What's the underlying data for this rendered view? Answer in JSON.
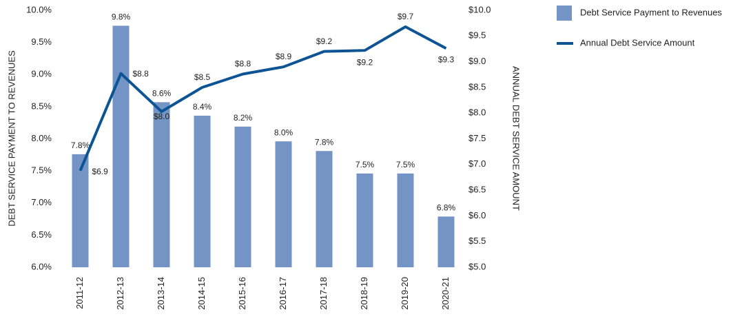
{
  "chart_data": {
    "type": "bar-line",
    "categories": [
      "2011-12",
      "2012-13",
      "2013-14",
      "2014-15",
      "2015-16",
      "2016-17",
      "2017-18",
      "2018-19",
      "2019-20",
      "2020-21"
    ],
    "series": [
      {
        "name": "Debt Service Payment to Revenues",
        "type": "bar",
        "color": "#7394c4",
        "axis": "y",
        "values": [
          7.76,
          9.76,
          8.57,
          8.36,
          8.19,
          7.96,
          7.81,
          7.46,
          7.46,
          6.79
        ],
        "value_labels": [
          "7.8%",
          "9.8%",
          "8.6%",
          "8.4%",
          "8.2%",
          "8.0%",
          "7.8%",
          "7.5%",
          "7.5%",
          "6.8%"
        ]
      },
      {
        "name": "Annual Debt Service Amount",
        "type": "line",
        "color": "#0d5494",
        "axis": "y2",
        "values": [
          6.88,
          8.77,
          8.03,
          8.5,
          8.76,
          8.9,
          9.2,
          9.22,
          9.68,
          9.26
        ],
        "value_labels": [
          "$6.9",
          "$8.8",
          "$8.0",
          "$8.5",
          "$8.8",
          "$8.9",
          "$9.2",
          "$9.2",
          "$9.7",
          "$9.3"
        ]
      }
    ],
    "ylabel": "DEBT SERVICE PAYMENT TO REVENUES",
    "y2label": "ANNUAL DEBT SERVICE AMOUNT",
    "ylim": [
      6.0,
      10.0
    ],
    "yticks": [
      {
        "value": 6.0,
        "label": "6.0%"
      },
      {
        "value": 6.5,
        "label": "6.5%"
      },
      {
        "value": 7.0,
        "label": "7.0%"
      },
      {
        "value": 7.5,
        "label": "7.5%"
      },
      {
        "value": 8.0,
        "label": "8.0%"
      },
      {
        "value": 8.5,
        "label": "8.5%"
      },
      {
        "value": 9.0,
        "label": "9.0%"
      },
      {
        "value": 9.5,
        "label": "9.5%"
      },
      {
        "value": 10.0,
        "label": "10.0%"
      }
    ],
    "y2lim": [
      5.0,
      10.0
    ],
    "y2ticks": [
      {
        "value": 5.0,
        "label": "$5.0"
      },
      {
        "value": 5.5,
        "label": "$5.5"
      },
      {
        "value": 6.0,
        "label": "$6.0"
      },
      {
        "value": 6.5,
        "label": "$6.5"
      },
      {
        "value": 7.0,
        "label": "$7.0"
      },
      {
        "value": 7.5,
        "label": "$7.5"
      },
      {
        "value": 8.0,
        "label": "$8.0"
      },
      {
        "value": 8.5,
        "label": "$8.5"
      },
      {
        "value": 9.0,
        "label": "$9.0"
      },
      {
        "value": 9.5,
        "label": "$9.5"
      },
      {
        "value": 10.0,
        "label": "$10.0"
      }
    ],
    "grid": false,
    "legend": "top-right"
  }
}
